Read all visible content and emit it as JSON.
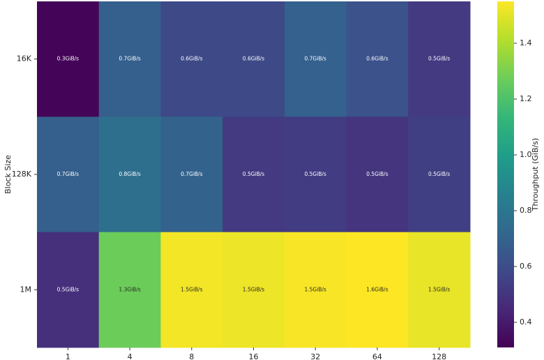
{
  "chart_data": {
    "type": "heatmap",
    "y_label": "Block Size",
    "x_categories": [
      "1",
      "4",
      "8",
      "16",
      "32",
      "64",
      "128"
    ],
    "y_categories": [
      "16K",
      "128K",
      "1M"
    ],
    "values": [
      [
        0.32,
        0.68,
        0.58,
        0.58,
        0.69,
        0.62,
        0.52
      ],
      [
        0.68,
        0.76,
        0.7,
        0.52,
        0.53,
        0.5,
        0.54
      ],
      [
        0.48,
        1.27,
        1.53,
        1.52,
        1.54,
        1.55,
        1.51
      ]
    ],
    "value_labels": [
      [
        "0.3GiB/s",
        "0.7GiB/s",
        "0.6GiB/s",
        "0.6GiB/s",
        "0.7GiB/s",
        "0.6GiB/s",
        "0.5GiB/s"
      ],
      [
        "0.7GiB/s",
        "0.8GiB/s",
        "0.7GiB/s",
        "0.5GiB/s",
        "0.5GiB/s",
        "0.5GiB/s",
        "0.5GiB/s"
      ],
      [
        "0.5GiB/s",
        "1.3GiB/s",
        "1.5GiB/s",
        "1.5GiB/s",
        "1.5GiB/s",
        "1.6GiB/s",
        "1.5GiB/s"
      ]
    ],
    "colormap": "viridis",
    "colorbar": {
      "label": "Throughput (GiB/s)",
      "lim": [
        0.31,
        1.55
      ],
      "ticks": [
        0.4,
        0.6,
        0.8,
        {
          "value": 1,
          "label": "1.0"
        },
        1.2,
        1.4
      ]
    }
  }
}
